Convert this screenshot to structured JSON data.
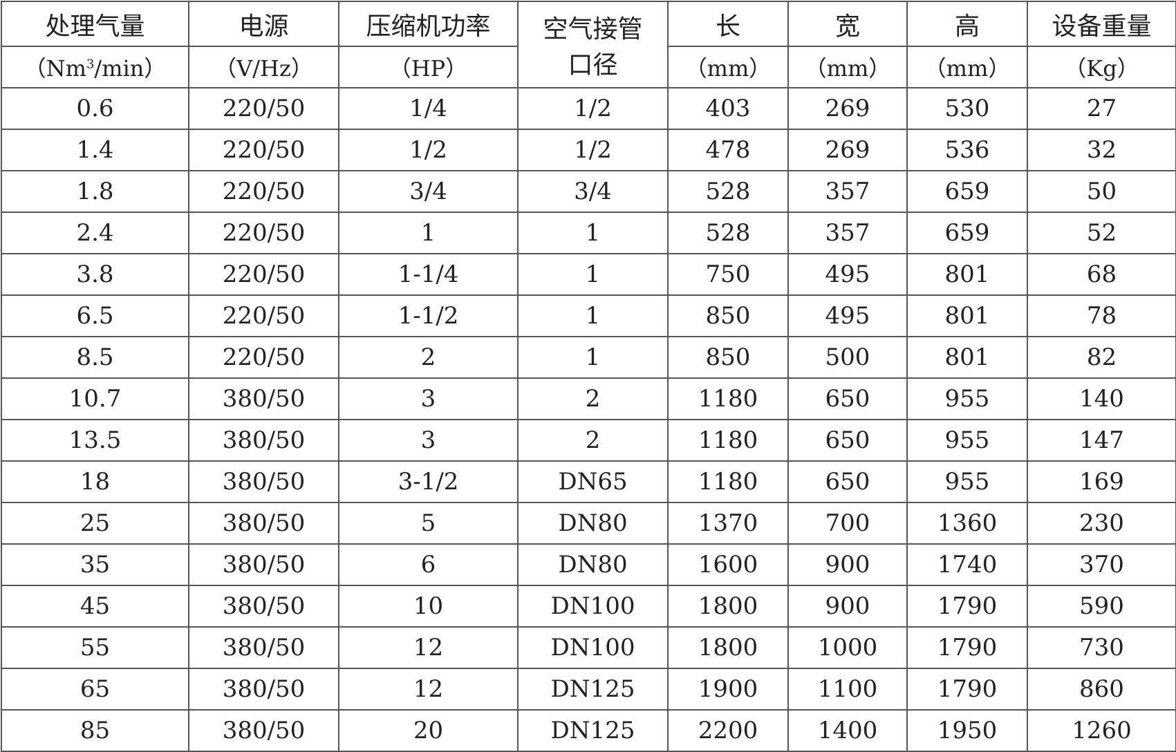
{
  "table": {
    "headers": [
      "处理气量",
      "电源",
      "压缩机功率",
      "空气接管口径",
      "长",
      "宽",
      "高",
      "设备重量"
    ],
    "header_top": [
      "处理气量",
      "电源",
      "压缩机功率",
      "空气接管",
      "长",
      "宽",
      "高",
      "设备重量"
    ],
    "header_merged_bottom": "口径",
    "units": {
      "flow_prefix": "（Nm",
      "flow_sup": "3",
      "flow_suffix": "/min）",
      "power": "（V/Hz）",
      "hp": "（HP）",
      "length": "（mm）",
      "width": "（mm）",
      "height": "（mm）",
      "weight": "（Kg）"
    },
    "rows": [
      [
        "0.6",
        "220/50",
        "1/4",
        "1/2",
        "403",
        "269",
        "530",
        "27"
      ],
      [
        "1.4",
        "220/50",
        "1/2",
        "1/2",
        "478",
        "269",
        "536",
        "32"
      ],
      [
        "1.8",
        "220/50",
        "3/4",
        "3/4",
        "528",
        "357",
        "659",
        "50"
      ],
      [
        "2.4",
        "220/50",
        "1",
        "1",
        "528",
        "357",
        "659",
        "52"
      ],
      [
        "3.8",
        "220/50",
        "1-1/4",
        "1",
        "750",
        "495",
        "801",
        "68"
      ],
      [
        "6.5",
        "220/50",
        "1-1/2",
        "1",
        "850",
        "495",
        "801",
        "78"
      ],
      [
        "8.5",
        "220/50",
        "2",
        "1",
        "850",
        "500",
        "801",
        "82"
      ],
      [
        "10.7",
        "380/50",
        "3",
        "2",
        "1180",
        "650",
        "955",
        "140"
      ],
      [
        "13.5",
        "380/50",
        "3",
        "2",
        "1180",
        "650",
        "955",
        "147"
      ],
      [
        "18",
        "380/50",
        "3-1/2",
        "DN65",
        "1180",
        "650",
        "955",
        "169"
      ],
      [
        "25",
        "380/50",
        "5",
        "DN80",
        "1370",
        "700",
        "1360",
        "230"
      ],
      [
        "35",
        "380/50",
        "6",
        "DN80",
        "1600",
        "900",
        "1740",
        "370"
      ],
      [
        "45",
        "380/50",
        "10",
        "DN100",
        "1800",
        "900",
        "1790",
        "590"
      ],
      [
        "55",
        "380/50",
        "12",
        "DN100",
        "1800",
        "1000",
        "1790",
        "730"
      ],
      [
        "65",
        "380/50",
        "12",
        "DN125",
        "1900",
        "1100",
        "1790",
        "860"
      ],
      [
        "85",
        "380/50",
        "20",
        "DN125",
        "2200",
        "1400",
        "1950",
        "1260"
      ]
    ]
  }
}
